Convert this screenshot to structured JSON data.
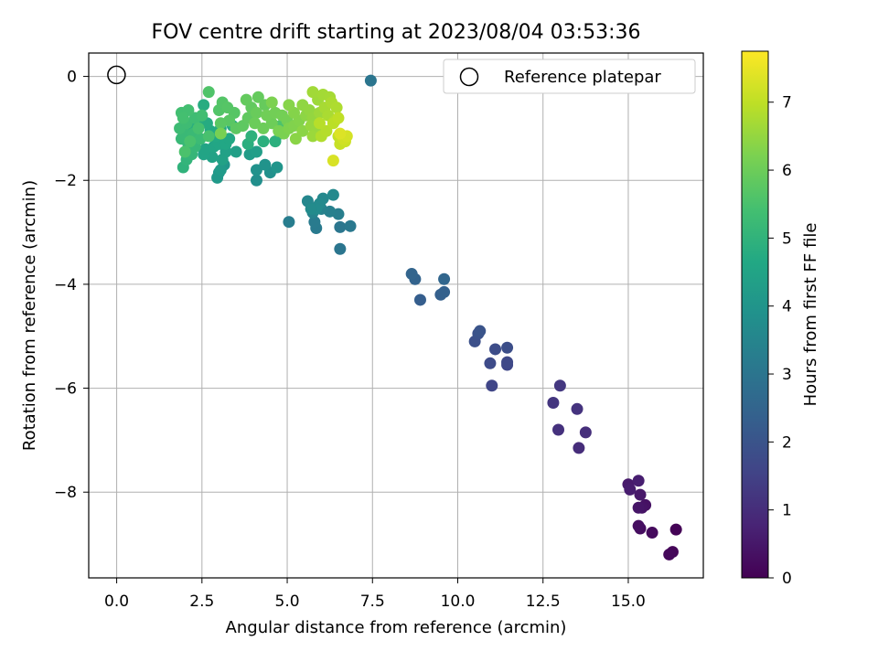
{
  "chart_data": {
    "type": "scatter",
    "title": "FOV centre drift starting at 2023/08/04 03:53:36",
    "xlabel": "Angular distance from reference (arcmin)",
    "ylabel": "Rotation from reference (arcmin)",
    "xlim": [
      -0.82,
      17.2
    ],
    "ylim": [
      -9.65,
      0.45
    ],
    "x_ticks": [
      0,
      2.5,
      5,
      7.5,
      10,
      12.5,
      15
    ],
    "x_tick_labels": [
      "0.0",
      "2.5",
      "5.0",
      "7.5",
      "10.0",
      "12.5",
      "15.0"
    ],
    "y_ticks": [
      0,
      -2,
      -4,
      -6,
      -8
    ],
    "y_tick_labels": [
      "0",
      "−2",
      "−4",
      "−6",
      "−8"
    ],
    "grid": true,
    "legend": {
      "placement": "top-right",
      "entries": [
        "Reference platepar"
      ]
    },
    "reference_point": {
      "x": 0,
      "y": 0,
      "name": "Reference platepar"
    },
    "colorbar": {
      "label": "Hours from first FF file",
      "range": [
        0,
        7.75
      ],
      "ticks": [
        0,
        1,
        2,
        3,
        4,
        5,
        6,
        7
      ],
      "colormap": "viridis"
    },
    "points": [
      {
        "x": 16.4,
        "y": -8.72,
        "c": 0.05
      },
      {
        "x": 16.3,
        "y": -9.15,
        "c": 0.1
      },
      {
        "x": 16.2,
        "y": -9.2,
        "c": 0.15
      },
      {
        "x": 15.7,
        "y": -8.78,
        "c": 0.2
      },
      {
        "x": 15.35,
        "y": -8.7,
        "c": 0.25
      },
      {
        "x": 15.3,
        "y": -8.65,
        "c": 0.3
      },
      {
        "x": 15.5,
        "y": -8.25,
        "c": 0.35
      },
      {
        "x": 15.4,
        "y": -8.3,
        "c": 0.4
      },
      {
        "x": 15.3,
        "y": -8.3,
        "c": 0.45
      },
      {
        "x": 15.35,
        "y": -8.05,
        "c": 0.5
      },
      {
        "x": 15.0,
        "y": -7.85,
        "c": 0.55
      },
      {
        "x": 15.05,
        "y": -7.95,
        "c": 0.6
      },
      {
        "x": 15.3,
        "y": -7.78,
        "c": 0.65
      },
      {
        "x": 13.55,
        "y": -7.15,
        "c": 1.0
      },
      {
        "x": 13.75,
        "y": -6.85,
        "c": 1.05
      },
      {
        "x": 12.95,
        "y": -6.8,
        "c": 1.1
      },
      {
        "x": 13.5,
        "y": -6.4,
        "c": 1.15
      },
      {
        "x": 12.8,
        "y": -6.28,
        "c": 1.2
      },
      {
        "x": 13.0,
        "y": -5.95,
        "c": 1.25
      },
      {
        "x": 11.0,
        "y": -5.95,
        "c": 1.6
      },
      {
        "x": 11.45,
        "y": -5.55,
        "c": 1.65
      },
      {
        "x": 11.45,
        "y": -5.5,
        "c": 1.7
      },
      {
        "x": 10.95,
        "y": -5.52,
        "c": 1.75
      },
      {
        "x": 11.1,
        "y": -5.25,
        "c": 1.8
      },
      {
        "x": 11.45,
        "y": -5.22,
        "c": 1.85
      },
      {
        "x": 10.5,
        "y": -5.1,
        "c": 1.9
      },
      {
        "x": 10.6,
        "y": -4.95,
        "c": 1.95
      },
      {
        "x": 10.65,
        "y": -4.9,
        "c": 2.0
      },
      {
        "x": 8.9,
        "y": -4.3,
        "c": 2.3
      },
      {
        "x": 9.5,
        "y": -4.2,
        "c": 2.35
      },
      {
        "x": 9.6,
        "y": -4.15,
        "c": 2.4
      },
      {
        "x": 8.75,
        "y": -3.9,
        "c": 2.45
      },
      {
        "x": 8.65,
        "y": -3.8,
        "c": 2.5
      },
      {
        "x": 9.6,
        "y": -3.9,
        "c": 2.55
      },
      {
        "x": 6.55,
        "y": -3.32,
        "c": 3.0
      },
      {
        "x": 6.55,
        "y": -2.9,
        "c": 3.05
      },
      {
        "x": 6.85,
        "y": -2.88,
        "c": 3.1
      },
      {
        "x": 5.85,
        "y": -2.92,
        "c": 3.15
      },
      {
        "x": 5.8,
        "y": -2.8,
        "c": 3.2
      },
      {
        "x": 5.05,
        "y": -2.8,
        "c": 3.25
      },
      {
        "x": 6.5,
        "y": -2.65,
        "c": 3.3
      },
      {
        "x": 6.25,
        "y": -2.6,
        "c": 3.35
      },
      {
        "x": 6.0,
        "y": -2.55,
        "c": 3.4
      },
      {
        "x": 5.75,
        "y": -2.62,
        "c": 3.45
      },
      {
        "x": 5.9,
        "y": -2.5,
        "c": 3.5
      },
      {
        "x": 5.6,
        "y": -2.4,
        "c": 3.55
      },
      {
        "x": 6.05,
        "y": -2.35,
        "c": 3.6
      },
      {
        "x": 6.35,
        "y": -2.28,
        "c": 3.62
      },
      {
        "x": 5.95,
        "y": -2.45,
        "c": 3.65
      },
      {
        "x": 5.85,
        "y": -2.55,
        "c": 3.68
      },
      {
        "x": 5.7,
        "y": -2.55,
        "c": 3.7
      },
      {
        "x": 4.1,
        "y": -2.0,
        "c": 3.8
      },
      {
        "x": 4.5,
        "y": -1.85,
        "c": 3.85
      },
      {
        "x": 4.1,
        "y": -1.8,
        "c": 3.9
      },
      {
        "x": 4.35,
        "y": -1.7,
        "c": 3.95
      },
      {
        "x": 4.7,
        "y": -1.75,
        "c": 4.0
      },
      {
        "x": 3.15,
        "y": -1.7,
        "c": 4.05
      },
      {
        "x": 3.0,
        "y": -1.85,
        "c": 4.1
      },
      {
        "x": 2.95,
        "y": -1.95,
        "c": 4.15
      },
      {
        "x": 3.05,
        "y": -1.8,
        "c": 4.2
      },
      {
        "x": 3.9,
        "y": -1.5,
        "c": 4.25
      },
      {
        "x": 4.1,
        "y": -1.45,
        "c": 4.3
      },
      {
        "x": 3.5,
        "y": -1.45,
        "c": 4.35
      },
      {
        "x": 3.2,
        "y": -1.45,
        "c": 4.4
      },
      {
        "x": 3.1,
        "y": -1.6,
        "c": 4.42
      },
      {
        "x": 2.8,
        "y": -1.55,
        "c": 4.45
      },
      {
        "x": 2.55,
        "y": -1.5,
        "c": 4.5
      },
      {
        "x": 2.6,
        "y": -1.4,
        "c": 4.52
      },
      {
        "x": 2.85,
        "y": -1.35,
        "c": 4.55
      },
      {
        "x": 3.0,
        "y": -1.3,
        "c": 4.58
      },
      {
        "x": 3.2,
        "y": -1.3,
        "c": 4.6
      },
      {
        "x": 3.3,
        "y": -1.2,
        "c": 4.62
      },
      {
        "x": 2.9,
        "y": -1.15,
        "c": 4.65
      },
      {
        "x": 2.75,
        "y": -1.05,
        "c": 4.68
      },
      {
        "x": 3.05,
        "y": -1.0,
        "c": 4.7
      },
      {
        "x": 3.4,
        "y": -0.95,
        "c": 4.72
      },
      {
        "x": 2.65,
        "y": -0.9,
        "c": 4.75
      },
      {
        "x": 2.55,
        "y": -0.55,
        "c": 4.78
      },
      {
        "x": 2.35,
        "y": -0.88,
        "c": 4.8
      },
      {
        "x": 2.1,
        "y": -0.95,
        "c": 4.82
      },
      {
        "x": 2.2,
        "y": -1.05,
        "c": 4.84
      },
      {
        "x": 3.85,
        "y": -1.3,
        "c": 4.86
      },
      {
        "x": 4.3,
        "y": -1.25,
        "c": 4.88
      },
      {
        "x": 4.65,
        "y": -1.25,
        "c": 4.9
      },
      {
        "x": 4.8,
        "y": -1.1,
        "c": 4.92
      },
      {
        "x": 3.95,
        "y": -1.15,
        "c": 4.95
      },
      {
        "x": 1.95,
        "y": -1.75,
        "c": 5.0
      },
      {
        "x": 2.05,
        "y": -1.6,
        "c": 5.05
      },
      {
        "x": 2.2,
        "y": -1.5,
        "c": 5.1
      },
      {
        "x": 2.3,
        "y": -1.35,
        "c": 5.12
      },
      {
        "x": 2.1,
        "y": -1.3,
        "c": 5.15
      },
      {
        "x": 1.9,
        "y": -1.2,
        "c": 5.18
      },
      {
        "x": 2.0,
        "y": -1.1,
        "c": 5.2
      },
      {
        "x": 2.25,
        "y": -1.1,
        "c": 5.22
      },
      {
        "x": 2.45,
        "y": -1.2,
        "c": 5.25
      },
      {
        "x": 1.85,
        "y": -1.0,
        "c": 5.28
      },
      {
        "x": 2.05,
        "y": -0.9,
        "c": 5.3
      },
      {
        "x": 2.3,
        "y": -0.8,
        "c": 5.32
      },
      {
        "x": 2.5,
        "y": -0.75,
        "c": 5.35
      },
      {
        "x": 1.9,
        "y": -0.7,
        "c": 5.38
      },
      {
        "x": 2.1,
        "y": -0.65,
        "c": 5.4
      },
      {
        "x": 1.95,
        "y": -0.8,
        "c": 5.42
      },
      {
        "x": 2.4,
        "y": -1.0,
        "c": 5.45
      },
      {
        "x": 2.7,
        "y": -1.15,
        "c": 5.48
      },
      {
        "x": 2.15,
        "y": -1.25,
        "c": 5.5
      },
      {
        "x": 2.0,
        "y": -1.45,
        "c": 5.52
      },
      {
        "x": 4.8,
        "y": -0.95,
        "c": 5.55
      },
      {
        "x": 2.7,
        "y": -0.3,
        "c": 5.6
      },
      {
        "x": 3.0,
        "y": -0.65,
        "c": 5.62
      },
      {
        "x": 3.1,
        "y": -0.5,
        "c": 5.65
      },
      {
        "x": 3.25,
        "y": -0.6,
        "c": 5.68
      },
      {
        "x": 3.45,
        "y": -0.7,
        "c": 5.7
      },
      {
        "x": 3.3,
        "y": -0.85,
        "c": 5.72
      },
      {
        "x": 3.05,
        "y": -0.9,
        "c": 5.75
      },
      {
        "x": 3.5,
        "y": -1.0,
        "c": 5.78
      },
      {
        "x": 3.7,
        "y": -0.95,
        "c": 5.8
      },
      {
        "x": 3.85,
        "y": -0.8,
        "c": 5.82
      },
      {
        "x": 3.95,
        "y": -0.6,
        "c": 5.85
      },
      {
        "x": 3.8,
        "y": -0.45,
        "c": 5.88
      },
      {
        "x": 4.15,
        "y": -0.4,
        "c": 5.9
      },
      {
        "x": 4.35,
        "y": -0.55,
        "c": 5.92
      },
      {
        "x": 4.1,
        "y": -0.7,
        "c": 5.95
      },
      {
        "x": 4.05,
        "y": -0.9,
        "c": 5.98
      },
      {
        "x": 4.3,
        "y": -1.0,
        "c": 6.0
      },
      {
        "x": 4.55,
        "y": -0.9,
        "c": 6.02
      },
      {
        "x": 4.4,
        "y": -0.75,
        "c": 6.05
      },
      {
        "x": 4.65,
        "y": -0.7,
        "c": 6.08
      },
      {
        "x": 4.85,
        "y": -0.75,
        "c": 6.1
      },
      {
        "x": 5.0,
        "y": -0.85,
        "c": 6.12
      },
      {
        "x": 3.05,
        "y": -1.1,
        "c": 6.15
      },
      {
        "x": 4.75,
        "y": -1.05,
        "c": 6.18
      },
      {
        "x": 4.9,
        "y": -1.1,
        "c": 6.2
      },
      {
        "x": 4.55,
        "y": -0.5,
        "c": 6.22
      },
      {
        "x": 5.05,
        "y": -1.0,
        "c": 6.25
      },
      {
        "x": 5.2,
        "y": -0.95,
        "c": 6.28
      },
      {
        "x": 5.35,
        "y": -0.85,
        "c": 6.3
      },
      {
        "x": 5.2,
        "y": -0.7,
        "c": 6.32
      },
      {
        "x": 5.05,
        "y": -0.55,
        "c": 6.35
      },
      {
        "x": 5.25,
        "y": -1.2,
        "c": 6.38
      },
      {
        "x": 5.45,
        "y": -1.05,
        "c": 6.4
      },
      {
        "x": 5.55,
        "y": -0.75,
        "c": 6.42
      },
      {
        "x": 5.45,
        "y": -0.55,
        "c": 6.45
      },
      {
        "x": 5.65,
        "y": -0.65,
        "c": 6.48
      },
      {
        "x": 5.75,
        "y": -0.8,
        "c": 6.5
      },
      {
        "x": 5.7,
        "y": -0.95,
        "c": 6.52
      },
      {
        "x": 5.85,
        "y": -1.05,
        "c": 6.55
      },
      {
        "x": 5.75,
        "y": -1.15,
        "c": 6.58
      },
      {
        "x": 5.95,
        "y": -0.7,
        "c": 6.6
      },
      {
        "x": 5.9,
        "y": -0.45,
        "c": 6.62
      },
      {
        "x": 5.75,
        "y": -0.3,
        "c": 6.65
      },
      {
        "x": 6.05,
        "y": -0.35,
        "c": 6.68
      },
      {
        "x": 6.25,
        "y": -0.4,
        "c": 6.7
      },
      {
        "x": 6.1,
        "y": -0.6,
        "c": 6.72
      },
      {
        "x": 6.2,
        "y": -0.75,
        "c": 6.75
      },
      {
        "x": 6.3,
        "y": -0.5,
        "c": 6.78
      },
      {
        "x": 6.45,
        "y": -0.6,
        "c": 6.8
      },
      {
        "x": 6.4,
        "y": -0.85,
        "c": 6.82
      },
      {
        "x": 6.0,
        "y": -1.15,
        "c": 6.85
      },
      {
        "x": 6.15,
        "y": -1.05,
        "c": 6.88
      },
      {
        "x": 5.95,
        "y": -0.9,
        "c": 6.9
      },
      {
        "x": 6.35,
        "y": -0.9,
        "c": 6.95
      },
      {
        "x": 6.5,
        "y": -0.8,
        "c": 7.0
      },
      {
        "x": 6.5,
        "y": -1.15,
        "c": 7.05
      },
      {
        "x": 6.55,
        "y": -1.3,
        "c": 7.1
      },
      {
        "x": 6.7,
        "y": -1.25,
        "c": 7.15
      },
      {
        "x": 6.65,
        "y": -1.2,
        "c": 7.2
      },
      {
        "x": 6.75,
        "y": -1.15,
        "c": 7.25
      },
      {
        "x": 6.35,
        "y": -1.62,
        "c": 7.3
      },
      {
        "x": 6.55,
        "y": -1.1,
        "c": 7.35
      },
      {
        "x": 7.45,
        "y": -0.08,
        "c": 3.0
      }
    ]
  }
}
